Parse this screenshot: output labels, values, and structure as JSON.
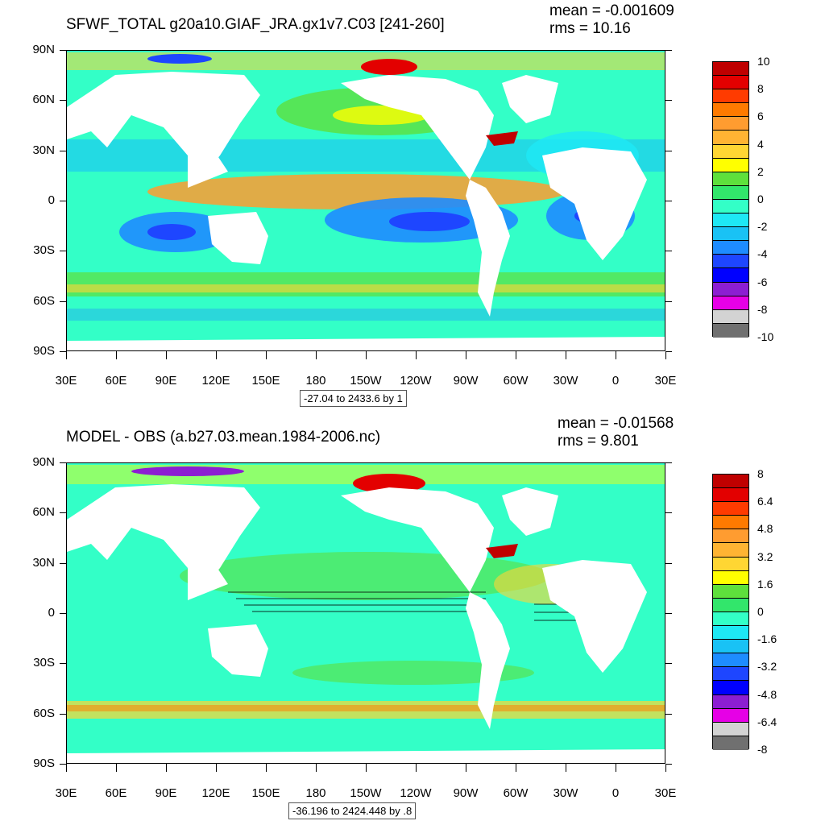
{
  "panels": [
    {
      "title": "SFWF_TOTAL g20a10.GIAF_JRA.gx1v7.C03 [241-260]",
      "mean": "mean = -0.001609",
      "rms": "rms = 10.16",
      "range_label": "-27.04 to 2433.6 by 1",
      "colorbar_labels": [
        "10",
        "8",
        "6",
        "4",
        "2",
        "0",
        "-2",
        "-4",
        "-6",
        "-8",
        "-10"
      ]
    },
    {
      "title": "MODEL - OBS (a.b27.03.mean.1984-2006.nc)",
      "mean": "mean = -0.01568",
      "rms": "rms = 9.801",
      "range_label": "-36.196 to 2424.448 by .8",
      "colorbar_labels": [
        "8",
        "6.4",
        "4.8",
        "3.2",
        "1.6",
        "0",
        "-1.6",
        "-3.2",
        "-4.8",
        "-6.4",
        "-8"
      ]
    }
  ],
  "axes": {
    "lat_labels": [
      "90N",
      "60N",
      "30N",
      "0",
      "30S",
      "60S",
      "90S"
    ],
    "lon_labels": [
      "30E",
      "60E",
      "90E",
      "120E",
      "150E",
      "180",
      "150W",
      "120W",
      "90W",
      "60W",
      "30W",
      "0",
      "30E"
    ]
  },
  "colors": {
    "palette": [
      "#bf0000",
      "#e30000",
      "#ff3b00",
      "#ff7a00",
      "#ff9c30",
      "#ffb433",
      "#ffd633",
      "#ffff00",
      "#5ee03c",
      "#32e66b",
      "#33ffc7",
      "#1ee8f5",
      "#19c2f5",
      "#1e8cff",
      "#1e46ff",
      "#0000ff",
      "#8c1ed2",
      "#e600e6",
      "#d3d3d3",
      "#707070"
    ]
  }
}
